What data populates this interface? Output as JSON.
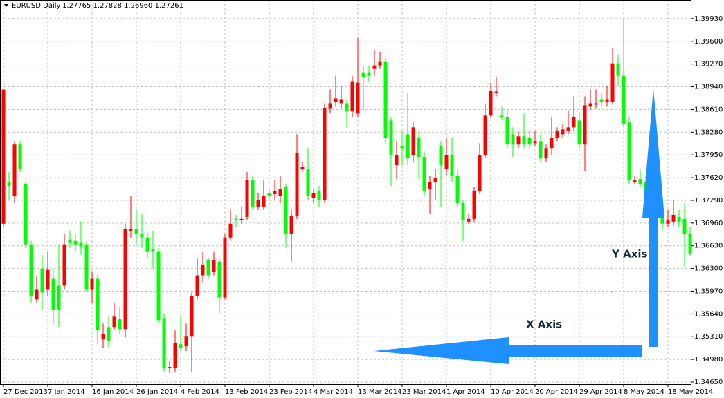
{
  "chart_data": {
    "type": "candlestick",
    "title": "EURUSD,Daily",
    "subtitle": "1.27765 1.27828 1.26960 1.27261",
    "categories": [
      "27 Dec 2013",
      null,
      null,
      null,
      null,
      null,
      null,
      null,
      "7 Jan 2014",
      null,
      null,
      null,
      null,
      null,
      null,
      null,
      "16 Jan 2014",
      null,
      null,
      null,
      null,
      null,
      null,
      null,
      "26 Jan 2014",
      null,
      null,
      null,
      null,
      null,
      null,
      null,
      "4 Feb 2014",
      null,
      null,
      null,
      null,
      null,
      null,
      null,
      "13 Feb 2014",
      null,
      null,
      null,
      null,
      null,
      null,
      null,
      "23 Feb 2014",
      null,
      null,
      null,
      null,
      null,
      null,
      null,
      "4 Mar 2014",
      null,
      null,
      null,
      null,
      null,
      null,
      null,
      "13 Mar 2014",
      null,
      null,
      null,
      null,
      null,
      null,
      null,
      "23 Mar 2014",
      null,
      null,
      null,
      null,
      null,
      null,
      null,
      "1 Apr 2014",
      null,
      null,
      null,
      null,
      null,
      null,
      null,
      "10 Apr 2014",
      null,
      null,
      null,
      null,
      null,
      null,
      null,
      "20 Apr 2014",
      null,
      null,
      null,
      null,
      null,
      null,
      null,
      "29 Apr 2014",
      null,
      null,
      null,
      null,
      null,
      null,
      null,
      "8 May 2014",
      null,
      null,
      null,
      null,
      null,
      null,
      null,
      "18 May 2014",
      null,
      null,
      null,
      null
    ],
    "open": [
      1.3695,
      1.3755,
      1.3735,
      1.381,
      1.3752,
      1.3665,
      1.3585,
      1.363,
      1.36,
      1.3615,
      1.3605,
      1.3605,
      1.3672,
      1.367,
      1.3668,
      1.3665,
      1.36,
      1.3615,
      1.3527,
      1.3545,
      1.3545,
      1.3557,
      1.3542,
      1.3685,
      1.3687,
      1.368,
      1.3675,
      1.3658,
      1.3655,
      1.3558,
      1.3485,
      1.3485,
      1.352,
      1.3517,
      1.3532,
      1.359,
      1.362,
      1.3642,
      1.3625,
      1.364,
      1.3588,
      1.3675,
      1.3702,
      1.37,
      1.3705,
      1.3758,
      1.372,
      1.372,
      1.374,
      1.3738,
      1.3735,
      1.3748,
      1.368,
      1.3707,
      1.3775,
      1.3775,
      1.3732,
      1.3742,
      1.373,
      1.3862,
      1.3872,
      1.387,
      1.387,
      1.3858,
      1.3855,
      1.3915,
      1.3915,
      1.392,
      1.3925,
      1.393,
      1.3845,
      1.378,
      1.3808,
      1.3825,
      1.3795,
      1.382,
      1.3792,
      1.3745,
      1.3755,
      1.3808,
      1.3775,
      1.3795,
      1.3765,
      1.3725,
      1.3698,
      1.3702,
      1.3742,
      1.3795,
      1.3852,
      1.3885,
      1.3852,
      1.385,
      1.3825,
      1.381,
      1.3822,
      1.382,
      1.3812,
      1.3815,
      1.379,
      1.3805,
      1.382,
      1.3825,
      1.383,
      1.3835,
      1.3845,
      1.381,
      1.3865,
      1.3868,
      1.3875,
      1.3872,
      1.3872,
      1.3928,
      1.391,
      1.3842,
      1.3755,
      1.376,
      1.3755,
      1.3715,
      1.371,
      1.3715,
      1.3695,
      1.3698,
      1.3705,
      1.3702,
      1.368
    ],
    "high": [
      1.389,
      1.377,
      1.3815,
      1.3815,
      1.3755,
      1.367,
      1.362,
      1.365,
      1.3655,
      1.363,
      1.3665,
      1.368,
      1.3685,
      1.368,
      1.3698,
      1.367,
      1.3625,
      1.3622,
      1.355,
      1.356,
      1.358,
      1.3575,
      1.3695,
      1.3735,
      1.3715,
      1.371,
      1.3682,
      1.3685,
      1.366,
      1.3565,
      1.3495,
      1.354,
      1.356,
      1.355,
      1.3595,
      1.3645,
      1.3655,
      1.3645,
      1.3655,
      1.3645,
      1.368,
      1.3715,
      1.3708,
      1.372,
      1.377,
      1.3765,
      1.374,
      1.3758,
      1.3745,
      1.3758,
      1.3765,
      1.3752,
      1.3715,
      1.3825,
      1.3785,
      1.3805,
      1.3745,
      1.375,
      1.387,
      1.389,
      1.391,
      1.3895,
      1.3875,
      1.391,
      1.3965,
      1.3925,
      1.3925,
      1.3948,
      1.3945,
      1.3935,
      1.385,
      1.3815,
      1.383,
      1.3885,
      1.3842,
      1.383,
      1.38,
      1.3765,
      1.3775,
      1.3815,
      1.382,
      1.382,
      1.3775,
      1.373,
      1.371,
      1.3748,
      1.3812,
      1.387,
      1.39,
      1.3908,
      1.3865,
      1.386,
      1.3835,
      1.383,
      1.3855,
      1.383,
      1.383,
      1.3825,
      1.381,
      1.385,
      1.3835,
      1.384,
      1.386,
      1.388,
      1.3855,
      1.388,
      1.389,
      1.389,
      1.3885,
      1.3895,
      1.395,
      1.394,
      1.3992,
      1.385,
      1.3765,
      1.3775,
      1.3765,
      1.375,
      1.3735,
      1.372,
      1.3715,
      1.373,
      1.3715,
      1.3725,
      1.369
    ],
    "low": [
      1.369,
      1.373,
      1.3725,
      1.377,
      1.366,
      1.358,
      1.358,
      1.357,
      1.359,
      1.355,
      1.3545,
      1.36,
      1.366,
      1.3655,
      1.365,
      1.3595,
      1.358,
      1.352,
      1.3515,
      1.3515,
      1.354,
      1.3535,
      1.353,
      1.3675,
      1.3665,
      1.366,
      1.3645,
      1.363,
      1.355,
      1.348,
      1.3478,
      1.348,
      1.351,
      1.351,
      1.348,
      1.3585,
      1.361,
      1.3615,
      1.362,
      1.3565,
      1.3585,
      1.367,
      1.369,
      1.3695,
      1.37,
      1.3715,
      1.3715,
      1.3715,
      1.373,
      1.373,
      1.3725,
      1.366,
      1.364,
      1.3702,
      1.3772,
      1.373,
      1.3725,
      1.372,
      1.3725,
      1.3855,
      1.3865,
      1.3862,
      1.3835,
      1.385,
      1.385,
      1.386,
      1.3902,
      1.391,
      1.392,
      1.381,
      1.375,
      1.376,
      1.378,
      1.378,
      1.3785,
      1.376,
      1.3735,
      1.371,
      1.373,
      1.372,
      1.3765,
      1.3755,
      1.372,
      1.367,
      1.3695,
      1.3698,
      1.3738,
      1.379,
      1.3848,
      1.388,
      1.3845,
      1.3805,
      1.3792,
      1.3805,
      1.3805,
      1.3805,
      1.3808,
      1.3785,
      1.3785,
      1.3795,
      1.3815,
      1.382,
      1.3825,
      1.383,
      1.3805,
      1.3772,
      1.386,
      1.3862,
      1.3865,
      1.3865,
      1.3868,
      1.3895,
      1.3835,
      1.3752,
      1.3752,
      1.3748,
      1.3715,
      1.3705,
      1.37,
      1.3685,
      1.369,
      1.3692,
      1.369,
      1.3632,
      1.3648
    ],
    "close": [
      1.389,
      1.375,
      1.381,
      1.3775,
      1.3665,
      1.359,
      1.36,
      1.3595,
      1.3628,
      1.357,
      1.357,
      1.3665,
      1.3668,
      1.3665,
      1.3662,
      1.36,
      1.3615,
      1.354,
      1.3535,
      1.3525,
      1.356,
      1.3542,
      1.3687,
      1.3687,
      1.368,
      1.3675,
      1.3655,
      1.3655,
      1.3555,
      1.3485,
      1.3487,
      1.3522,
      1.3515,
      1.3532,
      1.359,
      1.362,
      1.3635,
      1.362,
      1.3642,
      1.3588,
      1.3675,
      1.3695,
      1.37,
      1.3702,
      1.3758,
      1.372,
      1.373,
      1.3735,
      1.3735,
      1.3742,
      1.3745,
      1.368,
      1.3707,
      1.3798,
      1.3778,
      1.3735,
      1.374,
      1.373,
      1.3863,
      1.387,
      1.3877,
      1.3875,
      1.3858,
      1.3902,
      1.39,
      1.3908,
      1.391,
      1.3925,
      1.393,
      1.382,
      1.3795,
      1.3795,
      1.3805,
      1.379,
      1.3835,
      1.3792,
      1.3742,
      1.3755,
      1.3762,
      1.378,
      1.3795,
      1.3765,
      1.3725,
      1.37,
      1.3702,
      1.3742,
      1.3795,
      1.3852,
      1.3888,
      1.3887,
      1.385,
      1.381,
      1.381,
      1.3822,
      1.381,
      1.381,
      1.3815,
      1.379,
      1.3805,
      1.382,
      1.383,
      1.3832,
      1.3835,
      1.385,
      1.381,
      1.3867,
      1.387,
      1.387,
      1.3872,
      1.3875,
      1.3928,
      1.391,
      1.384,
      1.3758,
      1.3758,
      1.3752,
      1.372,
      1.373,
      1.3715,
      1.3695,
      1.37,
      1.3708,
      1.3698,
      1.368,
      1.3652
    ],
    "up_color": "#ff0000",
    "down_color": "#00ff00",
    "ylim": [
      1.3462,
      1.402
    ],
    "yticks": [
      {
        "value": 1.3465,
        "label": "1.34650"
      },
      {
        "value": 1.3498,
        "label": "1.34980"
      },
      {
        "value": 1.3531,
        "label": "1.35310"
      },
      {
        "value": 1.3564,
        "label": "1.35640"
      },
      {
        "value": 1.3597,
        "label": "1.35970"
      },
      {
        "value": 1.363,
        "label": "1.36300"
      },
      {
        "value": 1.3663,
        "label": "1.36630"
      },
      {
        "value": 1.3696,
        "label": "1.36960"
      },
      {
        "value": 1.3729,
        "label": "1.37290"
      },
      {
        "value": 1.3762,
        "label": "1.37620"
      },
      {
        "value": 1.3795,
        "label": "1.37950"
      },
      {
        "value": 1.3828,
        "label": "1.38280"
      },
      {
        "value": 1.3861,
        "label": "1.38610"
      },
      {
        "value": 1.3894,
        "label": "1.38940"
      },
      {
        "value": 1.3927,
        "label": "1.39270"
      },
      {
        "value": 1.396,
        "label": "1.39600"
      },
      {
        "value": 1.3993,
        "label": "1.39930"
      }
    ],
    "grid": true,
    "annotations": [
      "X Axis",
      "Y Axis"
    ]
  }
}
